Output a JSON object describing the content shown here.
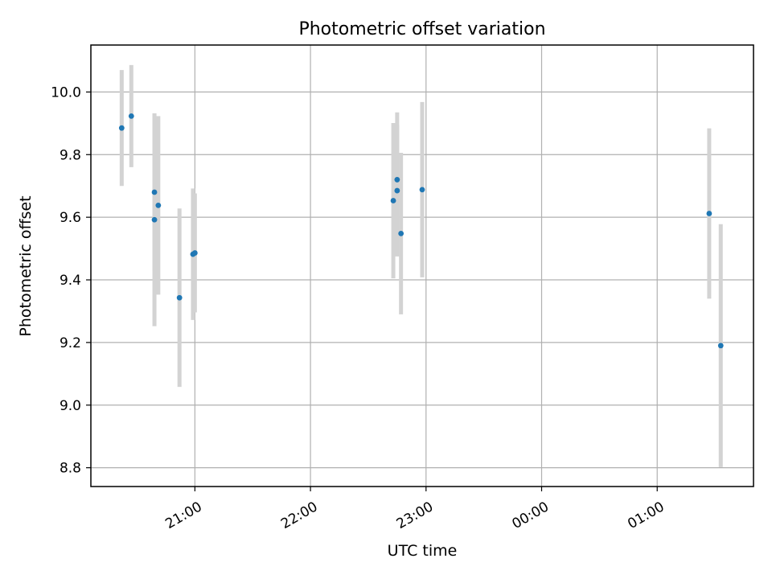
{
  "chart_data": {
    "type": "scatter",
    "title": "Photometric offset variation",
    "xlabel": "UTC time",
    "ylabel": "Photometric offset",
    "x_tick_labels": [
      "21:00",
      "22:00",
      "23:00",
      "00:00",
      "01:00"
    ],
    "y_tick_labels": [
      "8.8",
      "9.0",
      "9.2",
      "9.4",
      "9.6",
      "9.8",
      "10.0"
    ],
    "y_ticks": [
      8.8,
      9.0,
      9.2,
      9.4,
      9.6,
      9.8,
      10.0
    ],
    "grid": true,
    "ylim": [
      8.74,
      10.15
    ],
    "xlim": [
      "20:06",
      "01:50 (+1 day)"
    ],
    "colors": {
      "point": "#1f77b4",
      "errorbar": "#d3d3d3",
      "grid": "#b0b0b0"
    },
    "series": [
      {
        "points": [
          {
            "time": "20:22",
            "y": 9.885,
            "err": 0.185
          },
          {
            "time": "20:27",
            "y": 9.923,
            "err": 0.163
          },
          {
            "time": "20:39",
            "y": 9.68,
            "err": 0.25
          },
          {
            "time": "20:39",
            "y": 9.592,
            "err": 0.34
          },
          {
            "time": "20:41",
            "y": 9.638,
            "err": 0.285
          },
          {
            "time": "20:52",
            "y": 9.343,
            "err": 0.285
          },
          {
            "time": "20:59",
            "y": 9.482,
            "err": 0.21
          },
          {
            "time": "21:00",
            "y": 9.486,
            "err": 0.19
          },
          {
            "time": "22:43",
            "y": 9.653,
            "err": 0.248
          },
          {
            "time": "22:45",
            "y": 9.72,
            "err": 0.215
          },
          {
            "time": "22:45",
            "y": 9.685,
            "err": 0.21
          },
          {
            "time": "22:47",
            "y": 9.548,
            "err": 0.258
          },
          {
            "time": "22:58",
            "y": 9.688,
            "err": 0.28
          },
          {
            "time": "01:27",
            "y": 9.612,
            "err": 0.272
          },
          {
            "time": "01:33",
            "y": 9.19,
            "err": 0.388
          }
        ]
      }
    ]
  }
}
